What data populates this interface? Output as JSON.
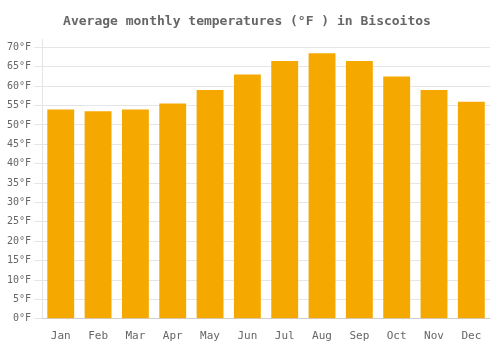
{
  "chart_data": {
    "type": "bar",
    "title": "Average monthly temperatures (°F ) in Biscoitos",
    "categories": [
      "Jan",
      "Feb",
      "Mar",
      "Apr",
      "May",
      "Jun",
      "Jul",
      "Aug",
      "Sep",
      "Oct",
      "Nov",
      "Dec"
    ],
    "values": [
      54,
      53.5,
      54,
      55.5,
      59,
      63,
      66.5,
      68.5,
      66.5,
      62.5,
      59,
      56
    ],
    "color": "#F5A800",
    "ylim": [
      0,
      72
    ],
    "yticks": [
      {
        "value": 0,
        "label": "0°F"
      },
      {
        "value": 5,
        "label": "5°F"
      },
      {
        "value": 10,
        "label": "10°F"
      },
      {
        "value": 15,
        "label": "15°F"
      },
      {
        "value": 20,
        "label": "20°F"
      },
      {
        "value": 25,
        "label": "25°F"
      },
      {
        "value": 30,
        "label": "30°F"
      },
      {
        "value": 35,
        "label": "35°F"
      },
      {
        "value": 40,
        "label": "40°F"
      },
      {
        "value": 45,
        "label": "45°F"
      },
      {
        "value": 50,
        "label": "50°F"
      },
      {
        "value": 55,
        "label": "55°F"
      },
      {
        "value": 60,
        "label": "60°F"
      },
      {
        "value": 65,
        "label": "65°F"
      },
      {
        "value": 70,
        "label": "70°F"
      }
    ],
    "grid": true
  }
}
